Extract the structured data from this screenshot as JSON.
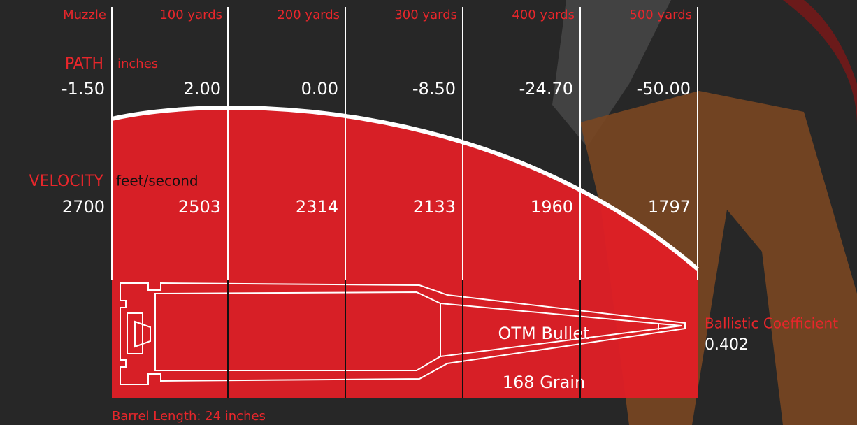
{
  "columns": [
    "Muzzle",
    "100 yards",
    "200 yards",
    "300 yards",
    "400 yards",
    "500 yards"
  ],
  "path": {
    "label": "PATH",
    "unit": "inches",
    "values": [
      "-1.50",
      "2.00",
      "0.00",
      "-8.50",
      "-24.70",
      "-50.00"
    ]
  },
  "velocity": {
    "label": "VELOCITY",
    "unit": "feet/second",
    "values": [
      "2700",
      "2503",
      "2314",
      "2133",
      "1960",
      "1797"
    ]
  },
  "bullet": {
    "name": "OTM Bullet",
    "weight": "168 Grain"
  },
  "ballistic_coefficient": {
    "label": "Ballistic Coefficient",
    "value": "0.402"
  },
  "barrel_length": "Barrel Length: 24 inches"
}
